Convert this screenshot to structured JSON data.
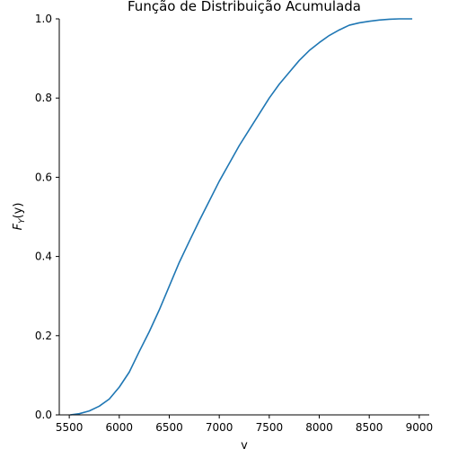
{
  "chart_data": {
    "type": "line",
    "title": "Função de Distribuição Acumulada",
    "xlabel": "y",
    "ylabel": {
      "main": "F",
      "sub": "Y",
      "arg": "(y)"
    },
    "xlim": [
      5400,
      9100
    ],
    "ylim": [
      0.0,
      1.0
    ],
    "x_ticks": [
      5500,
      6000,
      6500,
      7000,
      7500,
      8000,
      8500,
      9000
    ],
    "y_ticks": [
      0.0,
      0.2,
      0.4,
      0.6,
      0.8,
      1.0
    ],
    "x_tick_labels": [
      "5500",
      "6000",
      "6500",
      "7000",
      "7500",
      "8000",
      "8500",
      "9000"
    ],
    "y_tick_labels": [
      "0.0",
      "0.2",
      "0.4",
      "0.6",
      "0.8",
      "1.0"
    ],
    "grid": false,
    "series": [
      {
        "color": "#1f77b4",
        "x": [
          5510,
          5600,
          5700,
          5800,
          5900,
          6000,
          6100,
          6200,
          6300,
          6400,
          6500,
          6600,
          6700,
          6800,
          6900,
          7000,
          7100,
          7200,
          7300,
          7400,
          7500,
          7600,
          7700,
          7800,
          7900,
          8000,
          8100,
          8200,
          8300,
          8400,
          8500,
          8600,
          8700,
          8800,
          8930
        ],
        "y": [
          0.0,
          0.003,
          0.01,
          0.022,
          0.04,
          0.07,
          0.108,
          0.16,
          0.21,
          0.265,
          0.325,
          0.385,
          0.438,
          0.49,
          0.54,
          0.59,
          0.635,
          0.68,
          0.72,
          0.76,
          0.8,
          0.835,
          0.865,
          0.895,
          0.92,
          0.94,
          0.958,
          0.972,
          0.984,
          0.99,
          0.994,
          0.997,
          0.999,
          1.0,
          1.0
        ]
      }
    ]
  }
}
